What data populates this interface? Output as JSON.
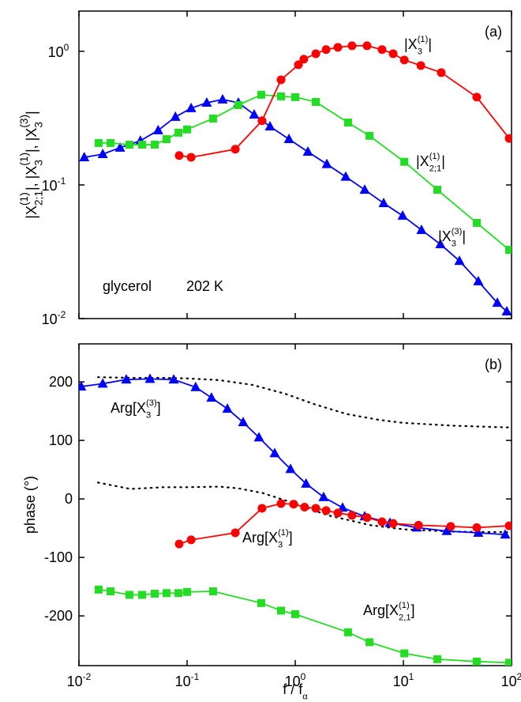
{
  "chart_data": [
    {
      "type": "line",
      "panel": "(a)",
      "xscale": "log",
      "yscale": "log",
      "xlim": [
        0.01,
        100
      ],
      "ylim": [
        0.01,
        2
      ],
      "xticks": [
        {
          "value": 0.01,
          "label": "10",
          "exp": "-2"
        },
        {
          "value": 0.1,
          "label": "10",
          "exp": "-1"
        },
        {
          "value": 1,
          "label": "10",
          "exp": "0"
        },
        {
          "value": 10,
          "label": "10",
          "exp": "1"
        },
        {
          "value": 100,
          "label": "10",
          "exp": "2"
        }
      ],
      "xtick_labels": false,
      "yticks": [
        {
          "value": 0.01,
          "label": "10",
          "exp": "-2"
        },
        {
          "value": 0.1,
          "label": "10",
          "exp": "-1"
        },
        {
          "value": 1,
          "label": "10",
          "exp": "0"
        }
      ],
      "ylabel": [
        {
          "base": "|X",
          "sub": "2;1",
          "sup": "(1)",
          "end": "|, "
        },
        {
          "base": "|X",
          "sub": "3",
          "sup": "(1)",
          "end": "|, "
        },
        {
          "base": "|X",
          "sub": "3",
          "sup": "(3)",
          "end": "|"
        }
      ],
      "annotations": [
        "glycerol",
        "202 K"
      ],
      "series": [
        {
          "label": {
            "base": "|X",
            "sub": "3",
            "sup": "(3)",
            "end": "|"
          },
          "color": "#0000ff",
          "marker": "triangle",
          "x": [
            0.0112,
            0.0166,
            0.024,
            0.037,
            0.054,
            0.078,
            0.109,
            0.152,
            0.213,
            0.298,
            0.417,
            0.584,
            0.875,
            1.31,
            1.96,
            2.93,
            4.39,
            6.57,
            9.84,
            14.7,
            22.0,
            33.0,
            49.3,
            73.9,
            90.4
          ],
          "values": [
            0.161,
            0.17,
            0.19,
            0.214,
            0.256,
            0.323,
            0.375,
            0.412,
            0.436,
            0.412,
            0.336,
            0.274,
            0.22,
            0.177,
            0.143,
            0.115,
            0.092,
            0.073,
            0.0588,
            0.046,
            0.036,
            0.027,
            0.019,
            0.0131,
            0.0113
          ]
        },
        {
          "label": {
            "base": "|X",
            "sub": "2;1",
            "sup": "(1)",
            "end": "|"
          },
          "color": "#22dd22",
          "marker": "square",
          "x": [
            0.0152,
            0.0196,
            0.0293,
            0.0384,
            0.0502,
            0.0646,
            0.0832,
            0.1,
            0.174,
            0.298,
            0.485,
            0.739,
            1.0,
            1.55,
            3.08,
            4.86,
            10.2,
            20.6,
            47.7,
            95.1
          ],
          "values": [
            0.206,
            0.206,
            0.2,
            0.2,
            0.2,
            0.22,
            0.246,
            0.26,
            0.314,
            0.396,
            0.473,
            0.46,
            0.454,
            0.418,
            0.293,
            0.233,
            0.149,
            0.092,
            0.052,
            0.0327
          ]
        },
        {
          "label": {
            "base": "|X",
            "sub": "3",
            "sup": "(1)",
            "end": "|"
          },
          "color": "#ff0000",
          "marker": "circle",
          "x": [
            0.0845,
            0.109,
            0.279,
            0.493,
            0.739,
            1.07,
            1.2,
            1.55,
            1.93,
            2.48,
            3.35,
            4.61,
            6.35,
            8.04,
            10.2,
            14.5,
            22.4,
            47.7,
            95.1
          ],
          "values": [
            0.166,
            0.161,
            0.185,
            0.302,
            0.612,
            0.793,
            0.873,
            0.959,
            1.03,
            1.07,
            1.1,
            1.1,
            1.03,
            0.959,
            0.861,
            0.782,
            0.693,
            0.454,
            0.223
          ]
        }
      ]
    },
    {
      "type": "line",
      "panel": "(b)",
      "xscale": "log",
      "yscale": "linear",
      "xlim": [
        0.01,
        100
      ],
      "ylim": [
        -285,
        265
      ],
      "xticks": [
        {
          "value": 0.01,
          "label": "10",
          "exp": "-2"
        },
        {
          "value": 0.1,
          "label": "10",
          "exp": "-1"
        },
        {
          "value": 1,
          "label": "10",
          "exp": "0"
        },
        {
          "value": 10,
          "label": "10",
          "exp": "1"
        },
        {
          "value": 100,
          "label": "10",
          "exp": "2"
        }
      ],
      "xtick_labels": true,
      "yticks": [
        -200,
        -100,
        0,
        100,
        200
      ],
      "xlabel": {
        "base": "f / f",
        "sub": "α"
      },
      "ylabel": [
        {
          "base": "phase (°)"
        }
      ],
      "series": [
        {
          "color": "#000000",
          "marker": "none",
          "dash": "dot",
          "x": [
            0.015,
            0.03,
            0.06,
            0.1,
            0.2,
            0.4,
            0.8,
            1.5,
            3,
            6,
            10,
            30,
            100
          ],
          "values": [
            208,
            207,
            207,
            206,
            203,
            195,
            180,
            162,
            145,
            135,
            130,
            125,
            122
          ]
        },
        {
          "color": "#000000",
          "marker": "none",
          "dash": "dot",
          "x": [
            0.015,
            0.03,
            0.06,
            0.1,
            0.2,
            0.3,
            0.5,
            1,
            2,
            5,
            10,
            30,
            100
          ],
          "values": [
            28,
            17,
            20,
            20,
            21,
            18,
            10,
            -8,
            -28,
            -45,
            -52,
            -56,
            -57
          ]
        },
        {
          "label": {
            "base": "Arg[X",
            "sub": "3",
            "sup": "(3)",
            "end": "]"
          },
          "color": "#0000ff",
          "marker": "triangle",
          "x": [
            0.0105,
            0.0166,
            0.0274,
            0.0454,
            0.0752,
            0.12,
            0.168,
            0.236,
            0.33,
            0.462,
            0.646,
            0.904,
            1.26,
            1.83,
            2.74,
            4.39,
            7.51,
            13.3,
            25.2,
            49.3,
            87.4
          ],
          "values": [
            192,
            197,
            204,
            205,
            204,
            191,
            173,
            154,
            131,
            105,
            78,
            51,
            26,
            3,
            -15,
            -30,
            -41,
            -49,
            -55,
            -58,
            -61
          ]
        },
        {
          "label": {
            "base": "Arg[X",
            "sub": "3",
            "sup": "(1)",
            "end": "]"
          },
          "color": "#ff0000",
          "marker": "circle",
          "x": [
            0.0845,
            0.109,
            0.279,
            0.493,
            0.739,
            0.967,
            1.22,
            1.55,
            1.93,
            2.48,
            3.35,
            4.61,
            6.35,
            8.04,
            13.8,
            27.4,
            47.7,
            95.1
          ],
          "values": [
            -77,
            -70,
            -58,
            -16,
            -8,
            -9,
            -14,
            -16,
            -20,
            -24,
            -28,
            -32,
            -39,
            -42,
            -45,
            -47,
            -49,
            -46
          ]
        },
        {
          "label": {
            "base": "Arg[X",
            "sub": "2,1",
            "sup": "(1)",
            "end": "]"
          },
          "color": "#22dd22",
          "marker": "square",
          "x": [
            0.0152,
            0.0196,
            0.0293,
            0.0384,
            0.0502,
            0.0646,
            0.0832,
            0.1,
            0.174,
            0.485,
            0.739,
            1.0,
            3.08,
            4.86,
            10.2,
            20.6,
            47.7,
            95.1
          ],
          "values": [
            -155,
            -158,
            -164,
            -164,
            -162,
            -161,
            -161,
            -159,
            -158,
            -178,
            -191,
            -197,
            -228,
            -245,
            -264,
            -274,
            -278,
            -280
          ]
        }
      ]
    }
  ]
}
